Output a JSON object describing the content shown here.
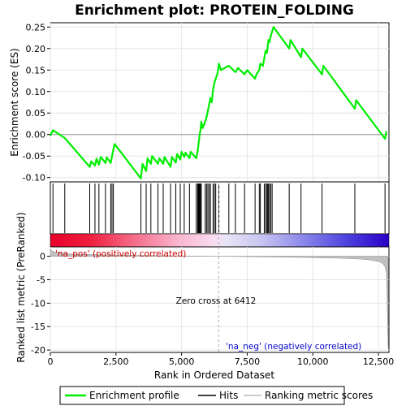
{
  "chart_data": [
    {
      "type": "line",
      "title": "Enrichment plot: PROTEIN_FOLDING",
      "ylabel": "Enrichment score (ES)",
      "xlim": [
        0,
        12900
      ],
      "ylim": [
        -0.11,
        0.26
      ],
      "yticks": [
        -0.1,
        -0.05,
        0.0,
        0.05,
        0.1,
        0.15,
        0.2,
        0.25
      ],
      "ytick_labels": [
        "-0.10",
        "-0.05",
        "0.00",
        "0.05",
        "0.10",
        "0.15",
        "0.20",
        "0.25"
      ],
      "grid": true,
      "series": [
        {
          "name": "Enrichment profile",
          "color": "#00ee00",
          "x": [
            0,
            100,
            550,
            1500,
            1560,
            1700,
            1760,
            1850,
            1920,
            2100,
            2150,
            2300,
            2350,
            2400,
            2450,
            3450,
            3510,
            3650,
            3700,
            3830,
            3880,
            4100,
            4150,
            4300,
            4350,
            4580,
            4630,
            4780,
            4830,
            4950,
            5000,
            5100,
            5150,
            5300,
            5350,
            5560,
            5610,
            5630,
            5650,
            5670,
            5690,
            5720,
            5750,
            5800,
            5900,
            5950,
            6000,
            6050,
            6100,
            6150,
            6200,
            6250,
            6300,
            6380,
            6420,
            6500,
            6800,
            7050,
            7150,
            7400,
            7500,
            7800,
            7850,
            7960,
            8000,
            8100,
            8150,
            8200,
            8250,
            8280,
            8310,
            8350,
            8400,
            8450,
            8500,
            9100,
            9150,
            9550,
            9600,
            10350,
            10400,
            11600,
            11650,
            12750,
            12800
          ],
          "y": [
            -0.003,
            0.01,
            -0.008,
            -0.075,
            -0.062,
            -0.072,
            -0.056,
            -0.07,
            -0.052,
            -0.066,
            -0.053,
            -0.066,
            -0.05,
            -0.035,
            -0.022,
            -0.102,
            -0.068,
            -0.085,
            -0.055,
            -0.068,
            -0.05,
            -0.068,
            -0.055,
            -0.068,
            -0.052,
            -0.075,
            -0.052,
            -0.065,
            -0.045,
            -0.058,
            -0.04,
            -0.052,
            -0.042,
            -0.055,
            -0.04,
            -0.055,
            -0.04,
            -0.03,
            -0.02,
            -0.01,
            0.0,
            0.01,
            0.03,
            0.015,
            0.03,
            0.04,
            0.055,
            0.07,
            0.085,
            0.075,
            0.105,
            0.12,
            0.13,
            0.145,
            0.165,
            0.15,
            0.16,
            0.145,
            0.155,
            0.14,
            0.15,
            0.13,
            0.14,
            0.15,
            0.165,
            0.16,
            0.178,
            0.195,
            0.19,
            0.205,
            0.22,
            0.215,
            0.23,
            0.24,
            0.25,
            0.2,
            0.22,
            0.18,
            0.2,
            0.14,
            0.16,
            0.06,
            0.08,
            -0.01,
            0.008
          ]
        }
      ]
    },
    {
      "type": "hits",
      "legend_name": "Hits",
      "xlim": [
        0,
        12900
      ],
      "positions": [
        100,
        550,
        1500,
        1700,
        1850,
        2100,
        2300,
        2350,
        2400,
        3450,
        3650,
        3830,
        4100,
        4300,
        4580,
        4780,
        4950,
        5100,
        5300,
        5560,
        5610,
        5630,
        5650,
        5670,
        5690,
        5720,
        5750,
        5900,
        5950,
        6000,
        6050,
        6100,
        6200,
        6250,
        6300,
        6420,
        6800,
        7050,
        7400,
        7800,
        7960,
        8000,
        8150,
        8200,
        8250,
        8280,
        8310,
        8350,
        8400,
        8450,
        9100,
        9550,
        10350,
        11600,
        12750
      ]
    },
    {
      "type": "area",
      "ylabel": "Ranked list metric (PreRanked)",
      "xlabel": "Rank in Ordered Dataset",
      "xlim": [
        0,
        12900
      ],
      "ylim": [
        -20.5,
        2.0
      ],
      "xticks": [
        0,
        2500,
        5000,
        7500,
        10000,
        12500
      ],
      "xtick_labels": [
        "0",
        "2,500",
        "5,000",
        "7,500",
        "10,000",
        "12,500"
      ],
      "yticks": [
        0,
        -5,
        -10,
        -15,
        -20
      ],
      "ytick_labels": [
        "0",
        "-5",
        "-10",
        "-15",
        "-20"
      ],
      "grid": true,
      "legend_name": "Ranking metric scores",
      "fill_color": "#c0c0c0",
      "x": [
        0,
        30,
        100,
        300,
        600,
        1000,
        2000,
        3000,
        4000,
        5000,
        6000,
        6412,
        7000,
        8000,
        9000,
        10000,
        11000,
        11800,
        12200,
        12500,
        12650,
        12750,
        12800,
        12820,
        12840,
        12870
      ],
      "values": [
        1.6,
        1.3,
        1.0,
        0.75,
        0.55,
        0.42,
        0.3,
        0.2,
        0.13,
        0.07,
        0.02,
        0.0,
        -0.05,
        -0.12,
        -0.2,
        -0.3,
        -0.42,
        -0.6,
        -0.8,
        -1.1,
        -1.5,
        -2.2,
        -3.5,
        -6.0,
        -12.0,
        -19.5
      ],
      "annotations": {
        "zero_cross_label": "Zero cross at 6412",
        "zero_cross_rank": 6412,
        "pos_label": "'na_pos' (positively correlated)",
        "neg_label": "'na_neg' (negatively correlated)"
      }
    }
  ],
  "colors": {
    "profile": "#00ee00",
    "pos_label": "#cc0000",
    "neg_label": "#0000cc",
    "zero_line": "#aaaaaa"
  },
  "legend": {
    "items": [
      "Enrichment profile",
      "Hits",
      "Ranking metric scores"
    ]
  }
}
